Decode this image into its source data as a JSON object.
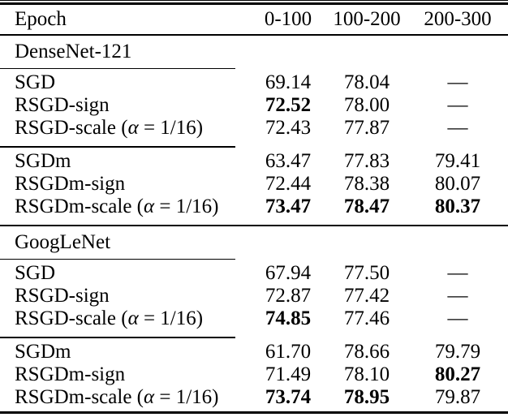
{
  "table": {
    "header": {
      "row_label": "Epoch",
      "columns": [
        "0-100",
        "100-200",
        "200-300"
      ]
    },
    "sections": [
      {
        "name": "DenseNet-121",
        "groups": [
          {
            "rows": [
              {
                "label": [
                  {
                    "text": "SGD"
                  }
                ],
                "values": [
                  {
                    "text": "69.14",
                    "bold": false
                  },
                  {
                    "text": "78.04",
                    "bold": false
                  },
                  {
                    "text": "—",
                    "bold": false
                  }
                ]
              },
              {
                "label": [
                  {
                    "text": "RSGD-sign"
                  }
                ],
                "values": [
                  {
                    "text": "72.52",
                    "bold": true
                  },
                  {
                    "text": "78.00",
                    "bold": false
                  },
                  {
                    "text": "—",
                    "bold": false
                  }
                ]
              },
              {
                "label": [
                  {
                    "text": "RSGD-scale ("
                  },
                  {
                    "text": "α",
                    "italic": true
                  },
                  {
                    "text": " = 1/16)"
                  }
                ],
                "values": [
                  {
                    "text": "72.43",
                    "bold": false
                  },
                  {
                    "text": "77.87",
                    "bold": false
                  },
                  {
                    "text": "—",
                    "bold": false
                  }
                ]
              }
            ]
          },
          {
            "rows": [
              {
                "label": [
                  {
                    "text": "SGDm"
                  }
                ],
                "values": [
                  {
                    "text": "63.47",
                    "bold": false
                  },
                  {
                    "text": "77.83",
                    "bold": false
                  },
                  {
                    "text": "79.41",
                    "bold": false
                  }
                ]
              },
              {
                "label": [
                  {
                    "text": "RSGDm-sign"
                  }
                ],
                "values": [
                  {
                    "text": "72.44",
                    "bold": false
                  },
                  {
                    "text": "78.38",
                    "bold": false
                  },
                  {
                    "text": "80.07",
                    "bold": false
                  }
                ]
              },
              {
                "label": [
                  {
                    "text": "RSGDm-scale ("
                  },
                  {
                    "text": "α",
                    "italic": true
                  },
                  {
                    "text": " = 1/16)"
                  }
                ],
                "values": [
                  {
                    "text": "73.47",
                    "bold": true
                  },
                  {
                    "text": "78.47",
                    "bold": true
                  },
                  {
                    "text": "80.37",
                    "bold": true
                  }
                ]
              }
            ]
          }
        ]
      },
      {
        "name": "GoogLeNet",
        "groups": [
          {
            "rows": [
              {
                "label": [
                  {
                    "text": "SGD"
                  }
                ],
                "values": [
                  {
                    "text": "67.94",
                    "bold": false
                  },
                  {
                    "text": "77.50",
                    "bold": false
                  },
                  {
                    "text": "—",
                    "bold": false
                  }
                ]
              },
              {
                "label": [
                  {
                    "text": "RSGD-sign"
                  }
                ],
                "values": [
                  {
                    "text": "72.87",
                    "bold": false
                  },
                  {
                    "text": "77.42",
                    "bold": false
                  },
                  {
                    "text": "—",
                    "bold": false
                  }
                ]
              },
              {
                "label": [
                  {
                    "text": "RSGD-scale ("
                  },
                  {
                    "text": "α",
                    "italic": true
                  },
                  {
                    "text": " = 1/16)"
                  }
                ],
                "values": [
                  {
                    "text": "74.85",
                    "bold": true
                  },
                  {
                    "text": "77.46",
                    "bold": false
                  },
                  {
                    "text": "—",
                    "bold": false
                  }
                ]
              }
            ]
          },
          {
            "rows": [
              {
                "label": [
                  {
                    "text": "SGDm"
                  }
                ],
                "values": [
                  {
                    "text": "61.70",
                    "bold": false
                  },
                  {
                    "text": "78.66",
                    "bold": false
                  },
                  {
                    "text": "79.79",
                    "bold": false
                  }
                ]
              },
              {
                "label": [
                  {
                    "text": "RSGDm-sign"
                  }
                ],
                "values": [
                  {
                    "text": "71.49",
                    "bold": false
                  },
                  {
                    "text": "78.10",
                    "bold": false
                  },
                  {
                    "text": "80.27",
                    "bold": true
                  }
                ]
              },
              {
                "label": [
                  {
                    "text": "RSGDm-scale ("
                  },
                  {
                    "text": "α",
                    "italic": true
                  },
                  {
                    "text": " = 1/16)"
                  }
                ],
                "values": [
                  {
                    "text": "73.74",
                    "bold": true
                  },
                  {
                    "text": "78.95",
                    "bold": true
                  },
                  {
                    "text": "79.87",
                    "bold": false
                  }
                ]
              }
            ]
          }
        ]
      }
    ]
  },
  "colors": {
    "background": "#ffffff",
    "text": "#000000",
    "rule": "#000000"
  }
}
